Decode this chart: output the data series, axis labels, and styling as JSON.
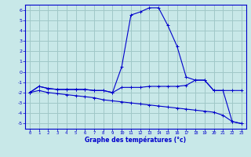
{
  "title": "Graphe des températures (°c)",
  "background_color": "#c8e8e8",
  "grid_color": "#a0c8c8",
  "line_color": "#0000cc",
  "xlim": [
    -0.5,
    23.5
  ],
  "ylim": [
    -5.5,
    6.5
  ],
  "yticks": [
    -5,
    -4,
    -3,
    -2,
    -1,
    0,
    1,
    2,
    3,
    4,
    5,
    6
  ],
  "xticks": [
    0,
    1,
    2,
    3,
    4,
    5,
    6,
    7,
    8,
    9,
    10,
    11,
    12,
    13,
    14,
    15,
    16,
    17,
    18,
    19,
    20,
    21,
    22,
    23
  ],
  "line1_x": [
    0,
    1,
    2,
    3,
    4,
    5,
    6,
    7,
    8,
    9,
    10,
    11,
    12,
    13,
    14,
    15,
    16,
    17,
    18,
    19,
    20,
    21,
    22,
    23
  ],
  "line1_y": [
    -2.0,
    -1.4,
    -1.6,
    -1.7,
    -1.7,
    -1.7,
    -1.7,
    -1.8,
    -1.8,
    -2.0,
    0.5,
    5.5,
    5.8,
    6.2,
    6.2,
    4.5,
    2.5,
    -0.5,
    -0.8,
    -0.8,
    -1.8,
    -1.8,
    -4.8,
    -5.0
  ],
  "line2_x": [
    0,
    1,
    2,
    3,
    4,
    5,
    6,
    7,
    8,
    9,
    10,
    11,
    12,
    13,
    14,
    15,
    16,
    17,
    18,
    19,
    20,
    21,
    22,
    23
  ],
  "line2_y": [
    -2.0,
    -1.4,
    -1.6,
    -1.7,
    -1.7,
    -1.7,
    -1.7,
    -1.8,
    -1.8,
    -2.0,
    -1.5,
    -1.5,
    -1.5,
    -1.4,
    -1.4,
    -1.4,
    -1.4,
    -1.3,
    -0.8,
    -0.8,
    -1.8,
    -1.8,
    -1.8,
    -1.8
  ],
  "line3_x": [
    0,
    1,
    2,
    3,
    4,
    5,
    6,
    7,
    8,
    9,
    10,
    11,
    12,
    13,
    14,
    15,
    16,
    17,
    18,
    19,
    20,
    21,
    22,
    23
  ],
  "line3_y": [
    -2.0,
    -1.8,
    -2.0,
    -2.1,
    -2.2,
    -2.3,
    -2.4,
    -2.5,
    -2.7,
    -2.8,
    -2.9,
    -3.0,
    -3.1,
    -3.2,
    -3.3,
    -3.4,
    -3.5,
    -3.6,
    -3.7,
    -3.8,
    -3.9,
    -4.2,
    -4.8,
    -5.0
  ]
}
